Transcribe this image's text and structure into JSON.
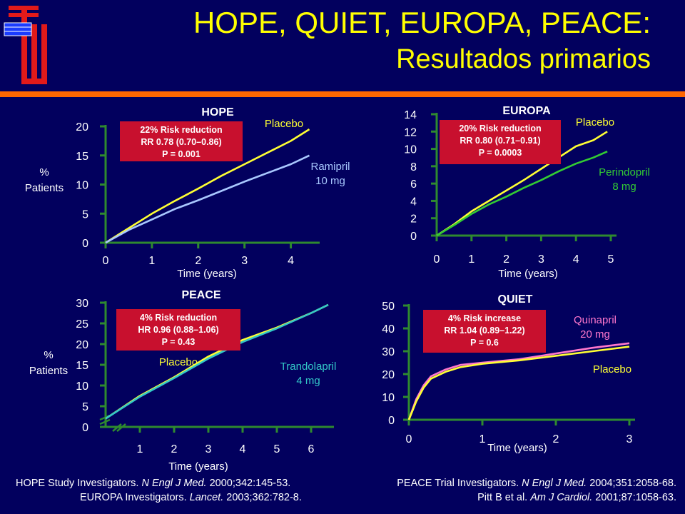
{
  "title": {
    "line1": "HOPE, QUIET, EUROPA, PEACE:",
    "line2": "Resultados primarios"
  },
  "colors": {
    "background": "#02005e",
    "title": "#ffff00",
    "axis": "#2f8a2f",
    "accent_bar": "#ff6600",
    "box": "#c8102e",
    "text": "#ffffff"
  },
  "chart_data": [
    {
      "id": "hope",
      "type": "line",
      "title": "HOPE",
      "xlabel": "Time (years)",
      "ylabel": "%\nPatients",
      "xlim": [
        0,
        4.5
      ],
      "ylim": [
        0,
        20
      ],
      "xticks": [
        0,
        1,
        2,
        3,
        4
      ],
      "yticks": [
        0,
        5,
        10,
        15,
        20
      ],
      "box": {
        "lines": [
          "22% Risk reduction",
          "RR 0.78 (0.70–0.86)",
          "P = 0.001"
        ]
      },
      "series": [
        {
          "name": "Placebo",
          "color": "#ffff33",
          "x": [
            0,
            0.5,
            1,
            1.5,
            2,
            2.5,
            3,
            3.5,
            4,
            4.4
          ],
          "y": [
            0,
            2.5,
            5,
            7.2,
            9.3,
            11.5,
            13.5,
            15.5,
            17.5,
            19.5
          ]
        },
        {
          "name": "Ramipril\n10 mg",
          "color": "#a9c8ff",
          "x": [
            0,
            0.5,
            1,
            1.5,
            2,
            2.5,
            3,
            3.5,
            4,
            4.4
          ],
          "y": [
            0,
            2.2,
            4,
            5.8,
            7.3,
            8.9,
            10.5,
            12,
            13.5,
            15
          ]
        }
      ]
    },
    {
      "id": "europa",
      "type": "line",
      "title": "EUROPA",
      "xlabel": "Time (years)",
      "ylabel": "",
      "xlim": [
        0,
        5
      ],
      "ylim": [
        0,
        14
      ],
      "xticks": [
        0,
        1,
        2,
        3,
        4,
        5
      ],
      "yticks": [
        0,
        2,
        4,
        6,
        8,
        10,
        12,
        14
      ],
      "box": {
        "lines": [
          "20% Risk reduction",
          "RR 0.80 (0.71–0.91)",
          "P = 0.0003"
        ]
      },
      "series": [
        {
          "name": "Placebo",
          "color": "#ffff33",
          "x": [
            0,
            0.5,
            1,
            1.5,
            2,
            2.5,
            3,
            3.5,
            4,
            4.5,
            4.9
          ],
          "y": [
            0,
            1.3,
            2.8,
            4.0,
            5.2,
            6.4,
            7.7,
            9.0,
            10.3,
            11.0,
            12.0
          ]
        },
        {
          "name": "Perindopril\n8 mg",
          "color": "#33cc33",
          "x": [
            0,
            0.5,
            1,
            1.5,
            2,
            2.5,
            3,
            3.5,
            4,
            4.5,
            4.9
          ],
          "y": [
            0,
            1.2,
            2.5,
            3.6,
            4.5,
            5.5,
            6.4,
            7.4,
            8.3,
            9.0,
            9.7
          ]
        }
      ]
    },
    {
      "id": "peace",
      "type": "line",
      "title": "PEACE",
      "xlabel": "Time (years)",
      "ylabel": "%\nPatients",
      "xlim": [
        0,
        6.5
      ],
      "ylim": [
        0,
        30
      ],
      "xticks": [
        1,
        2,
        3,
        4,
        5,
        6
      ],
      "yticks": [
        0,
        5,
        10,
        15,
        20,
        25,
        30
      ],
      "box": {
        "lines": [
          "4% Risk reduction",
          "HR 0.96 (0.88–1.06)",
          "P = 0.43"
        ]
      },
      "series": [
        {
          "name": "Placebo",
          "color": "#ffff33",
          "x": [
            0,
            1,
            2,
            3,
            4,
            5,
            6,
            6.5
          ],
          "y": [
            2,
            7.5,
            12,
            17,
            21,
            24,
            27.5,
            29.5
          ]
        },
        {
          "name": "Trandolapril\n4 mg",
          "color": "#33c8c8",
          "x": [
            0,
            1,
            2,
            3,
            4,
            5,
            6,
            6.5
          ],
          "y": [
            2,
            7.3,
            11.8,
            16.5,
            20.5,
            23.8,
            27.5,
            29.5
          ]
        }
      ]
    },
    {
      "id": "quiet",
      "type": "line",
      "title": "QUIET",
      "xlabel": "Time (years)",
      "ylabel": "",
      "xlim": [
        0,
        3
      ],
      "ylim": [
        0,
        50
      ],
      "xticks": [
        0,
        1,
        2,
        3
      ],
      "yticks": [
        0,
        10,
        20,
        30,
        40,
        50
      ],
      "box": {
        "lines": [
          "4% Risk increase",
          "RR 1.04 (0.89–1.22)",
          "P = 0.6"
        ]
      },
      "series": [
        {
          "name": "Quinapril\n20 mg",
          "color": "#ff77cc",
          "x": [
            0,
            0.1,
            0.2,
            0.3,
            0.5,
            0.7,
            1,
            1.5,
            2,
            2.5,
            3
          ],
          "y": [
            0,
            9,
            15,
            19,
            22,
            24,
            25,
            26.5,
            29,
            31.5,
            33.5
          ]
        },
        {
          "name": "Placebo",
          "color": "#ffff33",
          "x": [
            0,
            0.1,
            0.2,
            0.3,
            0.5,
            0.7,
            1,
            1.5,
            2,
            2.5,
            3
          ],
          "y": [
            0,
            8,
            14,
            18,
            21,
            23,
            24.5,
            26,
            28,
            30,
            32
          ]
        }
      ]
    }
  ],
  "citations": {
    "left_line1": [
      "HOPE Study Investigators. ",
      "N Engl J Med.",
      " 2000;342:145-53."
    ],
    "left_line2": [
      "EUROPA Investigators. ",
      "Lancet.",
      " 2003;362:782-8."
    ],
    "right_line1": [
      "PEACE Trial Investigators. ",
      "N Engl J Med.",
      " 2004;351:2058-68."
    ],
    "right_line2": [
      "Pitt B et al. ",
      "Am J Cardiol.",
      " 2001;87:1058-63."
    ]
  }
}
